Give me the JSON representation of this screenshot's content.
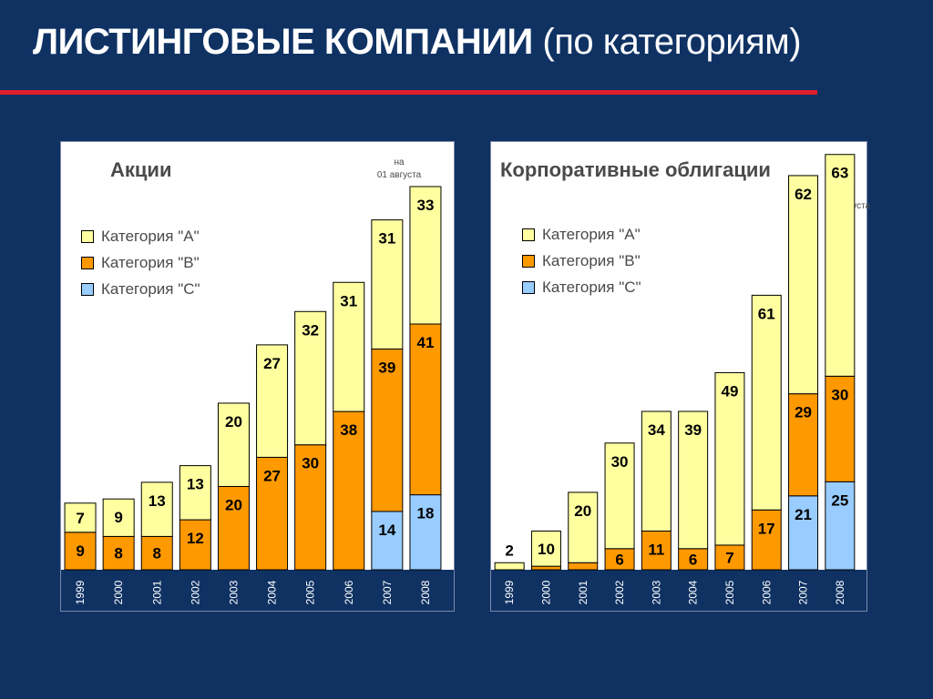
{
  "title": {
    "bold": "ЛИСТИНГОВЫЕ КОМПАНИИ",
    "normal": "(по категориям)"
  },
  "colors": {
    "A": "#ffffa0",
    "B": "#ff9900",
    "C": "#99ccff",
    "axis_band": "#0f3263"
  },
  "chart_data": [
    {
      "type": "bar",
      "title": "Акции",
      "asof": [
        "на",
        "01 августа"
      ],
      "categories": [
        "1999",
        "2000",
        "2001",
        "2002",
        "2003",
        "2004",
        "2005",
        "2006",
        "2007",
        "2008"
      ],
      "series": [
        {
          "name": "Категория \"C\"",
          "key": "C",
          "values": [
            0,
            0,
            0,
            0,
            0,
            0,
            0,
            0,
            14,
            18
          ]
        },
        {
          "name": "Категория \"B\"",
          "key": "B",
          "values": [
            9,
            8,
            8,
            12,
            20,
            27,
            30,
            38,
            39,
            41
          ]
        },
        {
          "name": "Категория \"A\"",
          "key": "A",
          "values": [
            7,
            9,
            13,
            13,
            20,
            27,
            32,
            31,
            31,
            33
          ]
        }
      ],
      "ylim": [
        0,
        92
      ],
      "legend_position": "top-left"
    },
    {
      "type": "bar",
      "title": "Корпоративные облигации",
      "asof": [
        "на",
        "01 августа"
      ],
      "categories": [
        "1999",
        "2000",
        "2001",
        "2002",
        "2003",
        "2004",
        "2005",
        "2006",
        "2007",
        "2008"
      ],
      "series": [
        {
          "name": "Категория \"C\"",
          "key": "C",
          "values": [
            0,
            0,
            0,
            0,
            0,
            0,
            0,
            0,
            21,
            25
          ]
        },
        {
          "name": "Категория \"B\"",
          "key": "B",
          "values": [
            0,
            1,
            2,
            6,
            11,
            6,
            7,
            17,
            29,
            30
          ]
        },
        {
          "name": "Категория \"A\"",
          "key": "A",
          "values": [
            2,
            10,
            20,
            30,
            34,
            39,
            49,
            61,
            62,
            63
          ]
        }
      ],
      "ylim": [
        0,
        120
      ],
      "legend_position": "top-left"
    }
  ]
}
